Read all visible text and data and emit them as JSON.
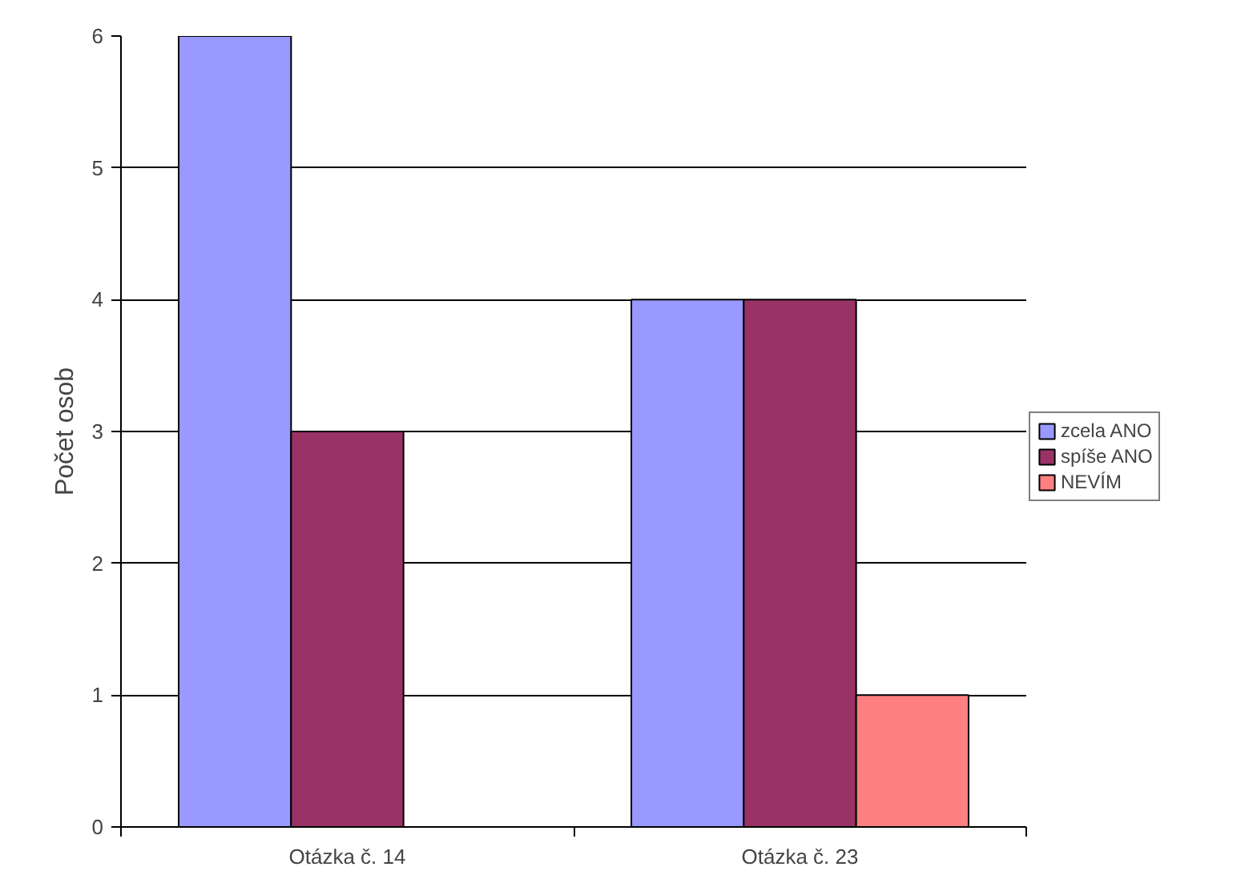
{
  "chart_data": {
    "type": "bar",
    "ylabel": "Počet osob",
    "categories": [
      "Otázka č. 14",
      "Otázka č. 23"
    ],
    "series": [
      {
        "name": "zcela ANO",
        "color": "#9999ff",
        "values": [
          6,
          4
        ]
      },
      {
        "name": "spíše ANO",
        "color": "#993366",
        "values": [
          3,
          4
        ]
      },
      {
        "name": "NEVÍM",
        "color": "#ff8080",
        "values": [
          null,
          1
        ]
      }
    ],
    "ylim": [
      0,
      6
    ],
    "yticks": [
      0,
      1,
      2,
      3,
      4,
      5,
      6
    ],
    "grid": "y",
    "legend": "right"
  }
}
